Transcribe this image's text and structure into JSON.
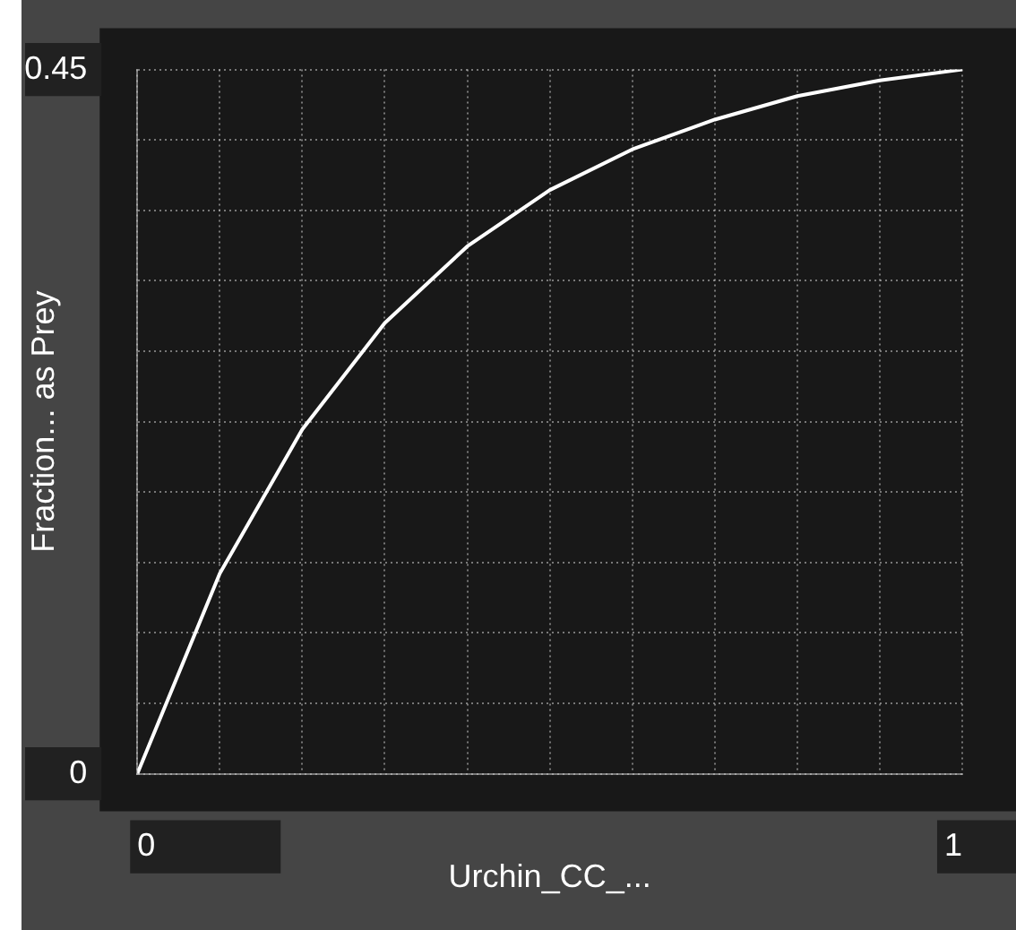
{
  "chart_data": {
    "type": "line",
    "xlabel": "Urchin_CC_...",
    "ylabel": "Fraction... as Prey",
    "x": [
      0,
      0.1,
      0.2,
      0.3,
      0.4,
      0.5,
      0.6,
      0.7,
      0.8,
      0.9,
      1
    ],
    "series": [
      {
        "color": "#ffffff",
        "values": [
          0,
          0.128,
          0.22,
          0.288,
          0.337,
          0.373,
          0.399,
          0.418,
          0.433,
          0.443,
          0.45
        ]
      }
    ],
    "xlim": [
      0,
      1
    ],
    "xticks": [
      0,
      {
        "value": 0.1,
        "label": null
      },
      {
        "value": 0.2,
        "label": null
      },
      {
        "value": 0.3,
        "label": null
      },
      {
        "value": 0.4,
        "label": null
      },
      {
        "value": 0.5,
        "label": null
      },
      {
        "value": 0.6,
        "label": null
      },
      {
        "value": 0.7,
        "label": null
      },
      {
        "value": 0.8,
        "label": null
      },
      {
        "value": 0.9,
        "label": null
      },
      1
    ],
    "ylim": [
      0,
      0.45
    ],
    "yticks": [
      0,
      {
        "value": 0.045,
        "label": null
      },
      {
        "value": 0.09,
        "label": null
      },
      {
        "value": 0.135,
        "label": null
      },
      {
        "value": 0.18,
        "label": null
      },
      {
        "value": 0.225,
        "label": null
      },
      {
        "value": 0.27,
        "label": null
      },
      {
        "value": 0.315,
        "label": null
      },
      {
        "value": 0.36,
        "label": null
      },
      {
        "value": 0.405,
        "label": null
      },
      0.45
    ],
    "grid": true,
    "marker": "none",
    "line_style": "solid"
  }
}
